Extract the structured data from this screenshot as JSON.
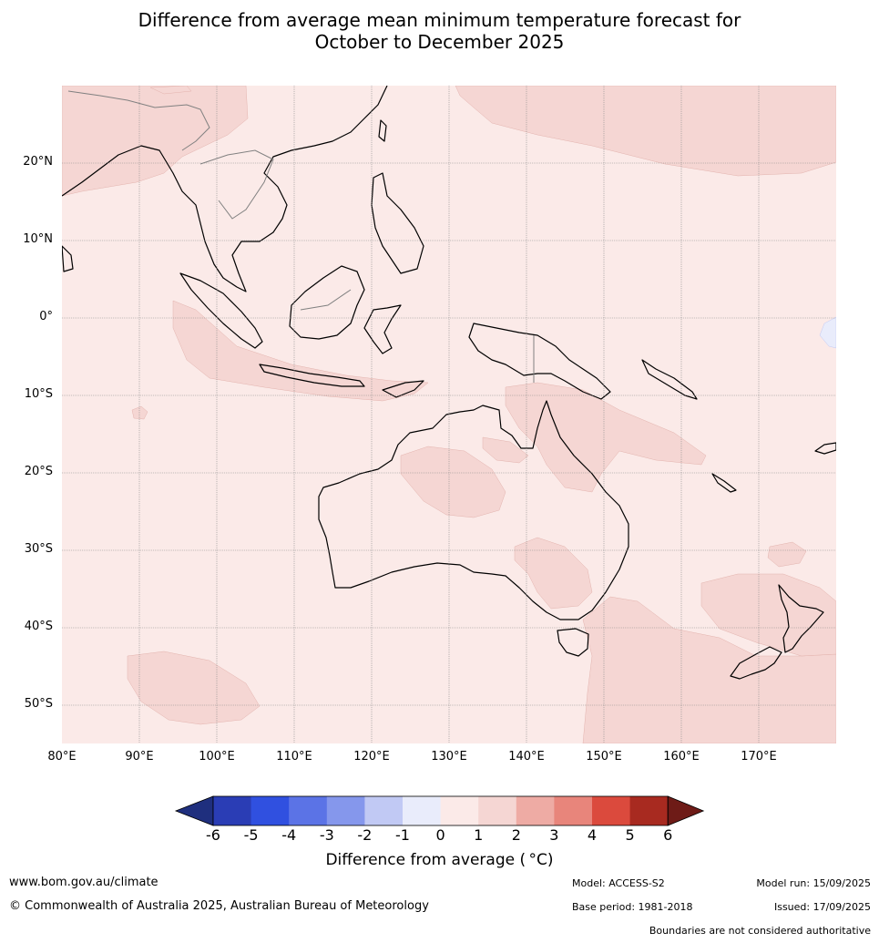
{
  "title": {
    "line1": "Difference from average mean minimum temperature forecast for",
    "line2": "October to December 2025"
  },
  "map": {
    "lat_labels": [
      "20°N",
      "10°N",
      "0°",
      "10°S",
      "20°S",
      "30°S",
      "40°S",
      "50°S"
    ],
    "lon_labels": [
      "80°E",
      "90°E",
      "100°E",
      "110°E",
      "120°E",
      "130°E",
      "140°E",
      "150°E",
      "160°E",
      "170°E"
    ],
    "background_category": "0 to 1",
    "colors": {
      "c0_1": "#fbeae8",
      "c1_2": "#f5d6d3",
      "cneg1_0": "#e9ecfb",
      "c2_3": "#f0b6b0",
      "coast": "#000000",
      "border": "#808080",
      "grid": "#8a8a8a"
    }
  },
  "colorbar": {
    "ticks": [
      "-6",
      "-5",
      "-4",
      "-3",
      "-2",
      "-1",
      "0",
      "1",
      "2",
      "3",
      "4",
      "5",
      "6"
    ],
    "colors": [
      "#1f2f7e",
      "#2a3db5",
      "#3050e0",
      "#5b73e6",
      "#8597ec",
      "#c1c9f4",
      "#e9ecfb",
      "#fbeae8",
      "#f5d6d3",
      "#eeaba4",
      "#e8857b",
      "#db4a3d",
      "#a82a20",
      "#6e1b17"
    ],
    "label": "Difference from average ( °C)"
  },
  "footer": {
    "website": "www.bom.gov.au/climate",
    "copyright": "© Commonwealth of Australia 2025, Australian Bureau of Meteorology",
    "model": "Model: ACCESS-S2",
    "base_period": "Base period: 1981-2018",
    "model_run": "Model run: 15/09/2025",
    "issued": "Issued: 17/09/2025",
    "boundaries": "Boundaries are not considered authoritative"
  }
}
